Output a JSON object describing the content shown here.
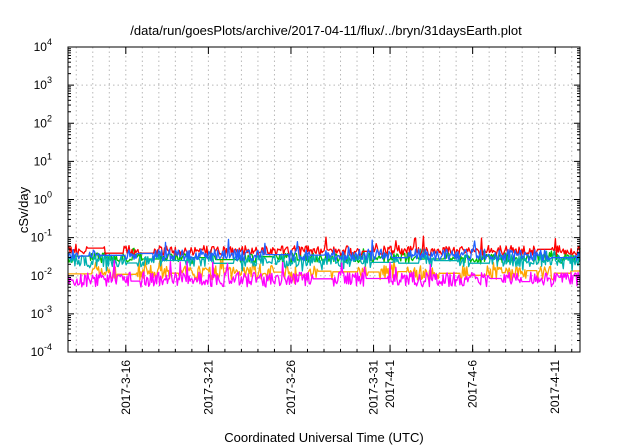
{
  "chart_data": {
    "type": "line",
    "title": "/data/run/goesPlots/archive/2017-04-11/flux/../bryn/31daysEarth.plot",
    "xlabel": "Coordinated Universal Time (UTC)",
    "ylabel": "cSv/day",
    "yscale": "log",
    "ylim": [
      0.0001,
      10000
    ],
    "xlim": [
      "2017-03-12T12:00",
      "2017-04-12T12:00"
    ],
    "grid": true,
    "legend": "none",
    "y_ticks": [
      {
        "value": 0.0001,
        "base": "10",
        "exp": "-4"
      },
      {
        "value": 0.001,
        "base": "10",
        "exp": "-3"
      },
      {
        "value": 0.01,
        "base": "10",
        "exp": "-2"
      },
      {
        "value": 0.1,
        "base": "10",
        "exp": "-1"
      },
      {
        "value": 1,
        "base": "10",
        "exp": "0"
      },
      {
        "value": 10,
        "base": "10",
        "exp": "1"
      },
      {
        "value": 100,
        "base": "10",
        "exp": "2"
      },
      {
        "value": 1000,
        "base": "10",
        "exp": "3"
      },
      {
        "value": 10000,
        "base": "10",
        "exp": "4"
      }
    ],
    "x_ticks": [
      {
        "value": "2017-03-16",
        "label": "2017-3-16"
      },
      {
        "value": "2017-03-21",
        "label": "2017-3-21"
      },
      {
        "value": "2017-03-26",
        "label": "2017-3-26"
      },
      {
        "value": "2017-03-31",
        "label": "2017-3-31"
      },
      {
        "value": "2017-04-01",
        "label": "2017-4-1"
      },
      {
        "value": "2017-04-06",
        "label": "2017-4-6"
      },
      {
        "value": "2017-04-11",
        "label": "2017-4-11"
      }
    ],
    "series": [
      {
        "color": "#ff0000",
        "approx_level": 0.045,
        "min": 0.035,
        "max": 0.11
      },
      {
        "color": "#00c000",
        "approx_level": 0.03,
        "min": 0.02,
        "max": 0.06
      },
      {
        "color": "#00b0b0",
        "approx_level": 0.025,
        "min": 0.013,
        "max": 0.05
      },
      {
        "color": "#ffa500",
        "approx_level": 0.012,
        "min": 0.006,
        "max": 0.03
      },
      {
        "color": "#2060ff",
        "approx_level": 0.035,
        "min": 0.025,
        "max": 0.09
      },
      {
        "color": "#ff00ff",
        "approx_level": 0.008,
        "min": 0.005,
        "max": 0.025
      }
    ]
  }
}
